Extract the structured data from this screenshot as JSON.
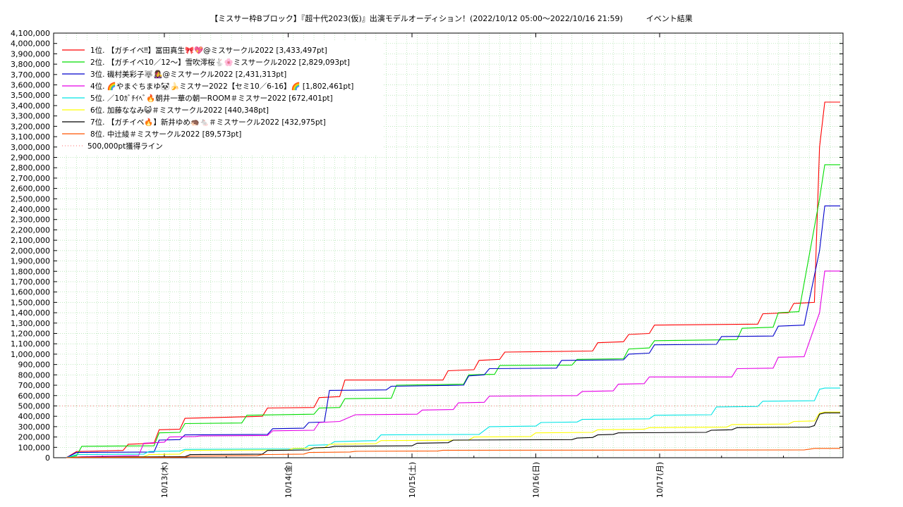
{
  "chart_data": {
    "type": "line",
    "title": "【ミスサー枠Bブロック】『超十代2023(仮)』出演モデルオーディション！(2022/10/12 05:00〜2022/10/16 21:59)　　　イベント結果",
    "x_ticks": [
      "10/13(木)",
      "10/14(金)",
      "10/15(土)",
      "10/16(日)",
      "10/17(月)"
    ],
    "x_range_hours": [
      0,
      117
    ],
    "ylim": [
      0,
      4100000
    ],
    "y_ticks": [
      "0",
      "100,000",
      "200,000",
      "300,000",
      "400,000",
      "500,000",
      "600,000",
      "700,000",
      "800,000",
      "900,000",
      "1,000,000",
      "1,100,000",
      "1,200,000",
      "1,300,000",
      "1,400,000",
      "1,500,000",
      "1,600,000",
      "1,700,000",
      "1,800,000",
      "1,900,000",
      "2,000,000",
      "2,100,000",
      "2,200,000",
      "2,300,000",
      "2,400,000",
      "2,500,000",
      "2,600,000",
      "2,700,000",
      "2,800,000",
      "2,900,000",
      "3,000,000",
      "3,100,000",
      "3,200,000",
      "3,300,000",
      "3,400,000",
      "3,500,000",
      "3,600,000",
      "3,700,000",
      "3,800,000",
      "3,900,000",
      "4,000,000",
      "4,100,000"
    ],
    "grid": true,
    "legend_position": "top-left",
    "threshold": {
      "name": "500,000pt獲得ライン",
      "value": 500000,
      "color": "#ff6b6b"
    },
    "series": [
      {
        "name": "1位. 【ガチイベ‼】冨田真生🎀💖@ミスサークル2022 [3,433,497pt]",
        "color": "#ff0000",
        "points": [
          [
            0,
            0
          ],
          [
            2,
            60000
          ],
          [
            11,
            70000
          ],
          [
            12,
            130000
          ],
          [
            17,
            140000
          ],
          [
            18,
            270000
          ],
          [
            22,
            275000
          ],
          [
            23,
            380000
          ],
          [
            38,
            400000
          ],
          [
            39,
            480000
          ],
          [
            48,
            485000
          ],
          [
            49,
            580000
          ],
          [
            53,
            590000
          ],
          [
            54,
            750000
          ],
          [
            73,
            750000
          ],
          [
            74,
            840000
          ],
          [
            79,
            850000
          ],
          [
            80,
            940000
          ],
          [
            84,
            950000
          ],
          [
            85,
            1020000
          ],
          [
            102,
            1030000
          ],
          [
            103,
            1110000
          ],
          [
            108,
            1120000
          ],
          [
            109,
            1190000
          ],
          [
            113,
            1200000
          ],
          [
            114,
            1280000
          ],
          [
            134,
            1290000
          ],
          [
            135,
            1390000
          ],
          [
            140,
            1400000
          ],
          [
            141,
            1490000
          ],
          [
            145,
            1500000
          ],
          [
            146,
            3000000
          ],
          [
            147,
            3433497
          ],
          [
            150,
            3433497
          ]
        ]
      },
      {
        "name": "2位. 【ガチイベ10／12〜】雪吹澪桜🐇🌸ミスサークル2022 [2,829,093pt]",
        "color": "#00dd00",
        "points": [
          [
            0,
            0
          ],
          [
            2,
            20000
          ],
          [
            3,
            110000
          ],
          [
            17,
            115000
          ],
          [
            18,
            240000
          ],
          [
            22,
            245000
          ],
          [
            23,
            330000
          ],
          [
            34,
            335000
          ],
          [
            35,
            410000
          ],
          [
            48,
            420000
          ],
          [
            49,
            480000
          ],
          [
            53,
            485000
          ],
          [
            54,
            570000
          ],
          [
            63,
            575000
          ],
          [
            64,
            700000
          ],
          [
            77,
            710000
          ],
          [
            78,
            800000
          ],
          [
            83,
            805000
          ],
          [
            84,
            890000
          ],
          [
            98,
            895000
          ],
          [
            99,
            950000
          ],
          [
            108,
            955000
          ],
          [
            109,
            1050000
          ],
          [
            113,
            1060000
          ],
          [
            114,
            1130000
          ],
          [
            130,
            1140000
          ],
          [
            131,
            1250000
          ],
          [
            137,
            1260000
          ],
          [
            138,
            1400000
          ],
          [
            142,
            1410000
          ],
          [
            146,
            2500000
          ],
          [
            147,
            2829093
          ],
          [
            150,
            2829093
          ]
        ]
      },
      {
        "name": "3位. 磯村美彩子🐺👩‍🎤@ミスサークル2022 [2,431,313pt]",
        "color": "#0000cc",
        "points": [
          [
            0,
            0
          ],
          [
            2,
            50000
          ],
          [
            17,
            55000
          ],
          [
            18,
            170000
          ],
          [
            22,
            175000
          ],
          [
            23,
            220000
          ],
          [
            39,
            225000
          ],
          [
            40,
            280000
          ],
          [
            46,
            285000
          ],
          [
            47,
            340000
          ],
          [
            50,
            345000
          ],
          [
            51,
            650000
          ],
          [
            62,
            655000
          ],
          [
            63,
            690000
          ],
          [
            77,
            700000
          ],
          [
            78,
            790000
          ],
          [
            81,
            800000
          ],
          [
            82,
            860000
          ],
          [
            95,
            865000
          ],
          [
            96,
            940000
          ],
          [
            108,
            945000
          ],
          [
            109,
            1000000
          ],
          [
            113,
            1010000
          ],
          [
            114,
            1090000
          ],
          [
            126,
            1095000
          ],
          [
            127,
            1170000
          ],
          [
            137,
            1175000
          ],
          [
            138,
            1270000
          ],
          [
            143,
            1280000
          ],
          [
            146,
            2000000
          ],
          [
            147,
            2431313
          ],
          [
            150,
            2431313
          ]
        ]
      },
      {
        "name": "4位. 🌈やまぐちまゆ🐼🍌ミスサー2022【セミ10／6-16】🌈 [1,802,461pt]",
        "color": "#e600e6",
        "points": [
          [
            0,
            0
          ],
          [
            3,
            10000
          ],
          [
            14,
            20000
          ],
          [
            15,
            140000
          ],
          [
            19,
            150000
          ],
          [
            20,
            200000
          ],
          [
            25,
            205000
          ],
          [
            26,
            210000
          ],
          [
            39,
            215000
          ],
          [
            40,
            260000
          ],
          [
            48,
            265000
          ],
          [
            49,
            340000
          ],
          [
            53,
            350000
          ],
          [
            56,
            415000
          ],
          [
            68,
            420000
          ],
          [
            69,
            460000
          ],
          [
            75,
            465000
          ],
          [
            76,
            530000
          ],
          [
            81,
            535000
          ],
          [
            82,
            595000
          ],
          [
            99,
            600000
          ],
          [
            100,
            640000
          ],
          [
            106,
            645000
          ],
          [
            107,
            710000
          ],
          [
            112,
            715000
          ],
          [
            113,
            780000
          ],
          [
            129,
            780000
          ],
          [
            130,
            860000
          ],
          [
            137,
            865000
          ],
          [
            138,
            970000
          ],
          [
            143,
            975000
          ],
          [
            146,
            1400000
          ],
          [
            147,
            1802461
          ],
          [
            150,
            1802461
          ]
        ]
      },
      {
        "name": "5位. ／10ｶﾞﾁｲﾍﾞ🔥朝井一華の朝一ROOM＃ミスサー2022 [672,401pt]",
        "color": "#00e5e5",
        "points": [
          [
            0,
            0
          ],
          [
            2,
            30000
          ],
          [
            15,
            35000
          ],
          [
            16,
            60000
          ],
          [
            22,
            65000
          ],
          [
            23,
            80000
          ],
          [
            46,
            85000
          ],
          [
            47,
            120000
          ],
          [
            51,
            125000
          ],
          [
            52,
            155000
          ],
          [
            60,
            165000
          ],
          [
            61,
            220000
          ],
          [
            80,
            225000
          ],
          [
            82,
            300000
          ],
          [
            91,
            305000
          ],
          [
            92,
            340000
          ],
          [
            99,
            345000
          ],
          [
            100,
            370000
          ],
          [
            113,
            375000
          ],
          [
            114,
            410000
          ],
          [
            125,
            415000
          ],
          [
            126,
            490000
          ],
          [
            134,
            495000
          ],
          [
            135,
            545000
          ],
          [
            145,
            550000
          ],
          [
            146,
            660000
          ],
          [
            147,
            672401
          ],
          [
            150,
            672401
          ]
        ]
      },
      {
        "name": "6位. 加藤ななみ😺＃ミスサークル2022 [440,348pt]",
        "color": "#ffff00",
        "points": [
          [
            0,
            0
          ],
          [
            2,
            5000
          ],
          [
            15,
            10000
          ],
          [
            16,
            30000
          ],
          [
            22,
            35000
          ],
          [
            23,
            70000
          ],
          [
            43,
            75000
          ],
          [
            44,
            90000
          ],
          [
            50,
            95000
          ],
          [
            51,
            130000
          ],
          [
            60,
            135000
          ],
          [
            61,
            165000
          ],
          [
            78,
            170000
          ],
          [
            79,
            200000
          ],
          [
            90,
            205000
          ],
          [
            91,
            240000
          ],
          [
            102,
            245000
          ],
          [
            103,
            270000
          ],
          [
            112,
            275000
          ],
          [
            113,
            290000
          ],
          [
            128,
            295000
          ],
          [
            129,
            320000
          ],
          [
            140,
            325000
          ],
          [
            141,
            350000
          ],
          [
            145,
            355000
          ],
          [
            146,
            430000
          ],
          [
            147,
            440348
          ],
          [
            150,
            440348
          ]
        ]
      },
      {
        "name": "7位. 【ガチイベ🔥】新井ゆめ🦔🐁＃ミスサークル2022 [432,975pt]",
        "color": "#000000",
        "points": [
          [
            0,
            0
          ],
          [
            2,
            5000
          ],
          [
            23,
            10000
          ],
          [
            24,
            30000
          ],
          [
            38,
            35000
          ],
          [
            39,
            70000
          ],
          [
            47,
            75000
          ],
          [
            48,
            95000
          ],
          [
            51,
            100000
          ],
          [
            52,
            110000
          ],
          [
            67,
            115000
          ],
          [
            68,
            140000
          ],
          [
            74,
            145000
          ],
          [
            75,
            170000
          ],
          [
            98,
            175000
          ],
          [
            99,
            190000
          ],
          [
            102,
            195000
          ],
          [
            103,
            220000
          ],
          [
            106,
            225000
          ],
          [
            107,
            240000
          ],
          [
            124,
            245000
          ],
          [
            125,
            265000
          ],
          [
            129,
            270000
          ],
          [
            130,
            290000
          ],
          [
            144,
            295000
          ],
          [
            145,
            310000
          ],
          [
            146,
            420000
          ],
          [
            147,
            432975
          ],
          [
            150,
            432975
          ]
        ]
      },
      {
        "name": "8位. 中辻綾＃ミスサークル2022 [89,573pt]",
        "color": "#ff5500",
        "points": [
          [
            0,
            0
          ],
          [
            2,
            3000
          ],
          [
            23,
            5000
          ],
          [
            24,
            15000
          ],
          [
            37,
            20000
          ],
          [
            38,
            30000
          ],
          [
            46,
            35000
          ],
          [
            47,
            50000
          ],
          [
            55,
            55000
          ],
          [
            56,
            62000
          ],
          [
            72,
            65000
          ],
          [
            73,
            72000
          ],
          [
            143,
            75000
          ],
          [
            145,
            89573
          ],
          [
            150,
            89573
          ]
        ]
      }
    ]
  }
}
